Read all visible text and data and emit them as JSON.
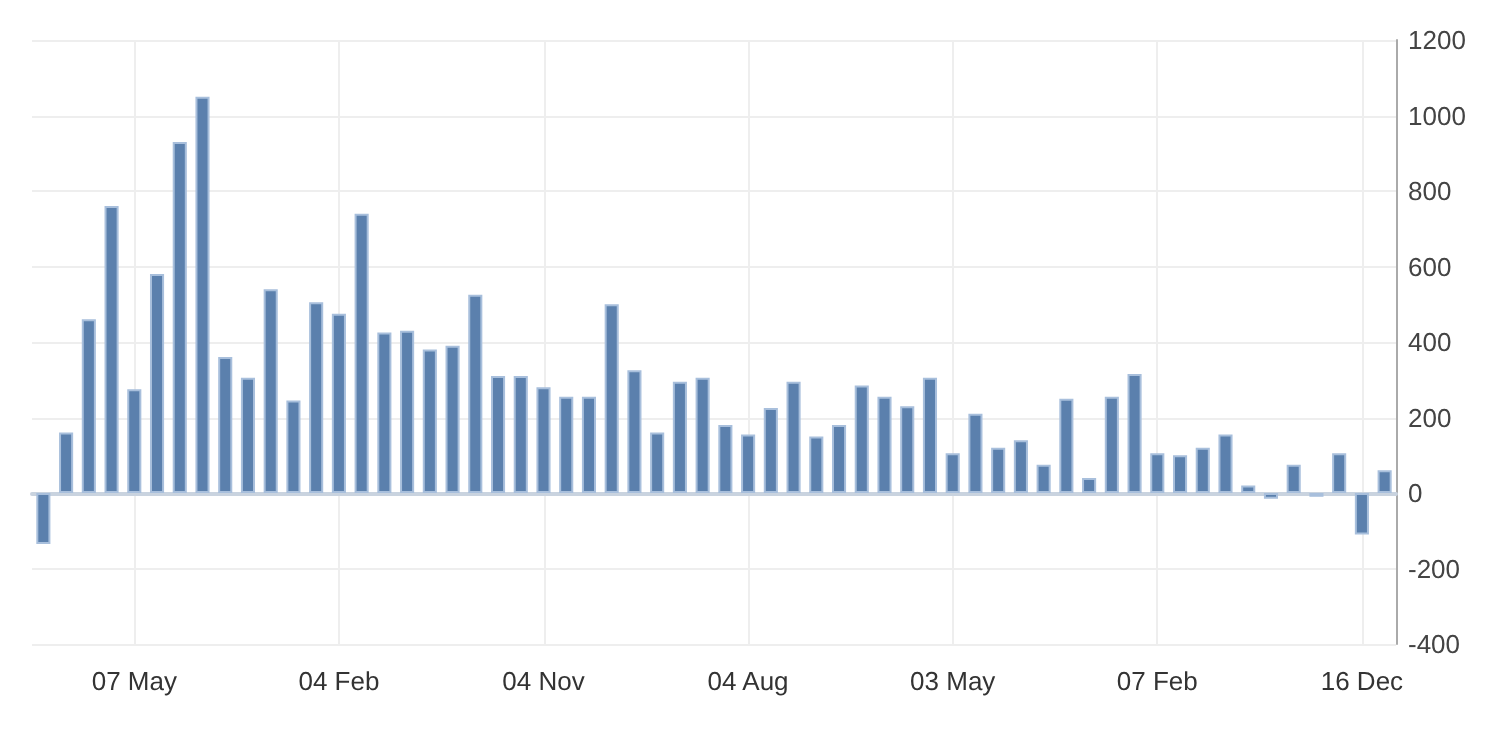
{
  "chart_data": {
    "type": "bar",
    "categories": [
      null,
      null,
      null,
      null,
      "07 May",
      null,
      null,
      null,
      null,
      null,
      null,
      null,
      null,
      "04 Feb",
      null,
      null,
      null,
      null,
      null,
      null,
      null,
      null,
      "04 Nov",
      null,
      null,
      null,
      null,
      null,
      null,
      null,
      null,
      "04 Aug",
      null,
      null,
      null,
      null,
      null,
      null,
      null,
      null,
      "03 May",
      null,
      null,
      null,
      null,
      null,
      null,
      null,
      null,
      "07 Feb",
      null,
      null,
      null,
      null,
      null,
      null,
      null,
      null,
      "16 Dec",
      null
    ],
    "values": [
      -135,
      160,
      460,
      760,
      275,
      580,
      930,
      1050,
      360,
      305,
      540,
      245,
      505,
      475,
      740,
      425,
      430,
      380,
      390,
      525,
      310,
      310,
      280,
      255,
      255,
      500,
      325,
      160,
      295,
      305,
      180,
      155,
      225,
      295,
      150,
      180,
      285,
      255,
      230,
      305,
      105,
      210,
      120,
      140,
      75,
      250,
      40,
      255,
      315,
      105,
      100,
      120,
      155,
      20,
      -15,
      75,
      -10,
      105,
      -110,
      60
    ],
    "color": "#5b80ad",
    "ylim": [
      -400,
      1200
    ],
    "yticks": [
      -400,
      -200,
      0,
      200,
      400,
      600,
      800,
      1000,
      1200
    ],
    "grid": true
  }
}
